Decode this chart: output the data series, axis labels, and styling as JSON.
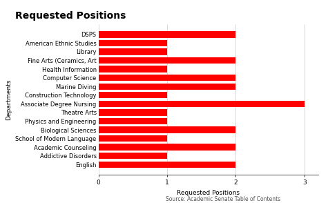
{
  "title": "Requested Positions",
  "departments": [
    "English",
    "Addictive Disorders",
    "Academic Counseling",
    "School of Modern Language",
    "Biological Sciences",
    "Physics and Engineering",
    "Theatre Arts",
    "Associate Degree Nursing",
    "Construction Technology",
    "Marine Diving",
    "Computer Science",
    "Health Information",
    "Fine Arts (Ceramics, Art",
    "Library",
    "American Ethnic Studies",
    "DSPS"
  ],
  "values": [
    2,
    1,
    2,
    1,
    2,
    1,
    1,
    3,
    1,
    2,
    2,
    1,
    2,
    1,
    1,
    2
  ],
  "bar_color": "#ff0000",
  "xlabel": "Requested Positions",
  "ylabel": "Departments",
  "source_label": "Source: Academic Senate Table of Contents",
  "xlim": [
    0,
    3.2
  ],
  "xticks": [
    0,
    1,
    2,
    3
  ],
  "title_fontsize": 10,
  "label_fontsize": 6.5,
  "tick_fontsize": 6.5,
  "ytick_fontsize": 6.0,
  "bar_height": 0.75,
  "background_color": "#ffffff",
  "grid_color": "#cccccc"
}
